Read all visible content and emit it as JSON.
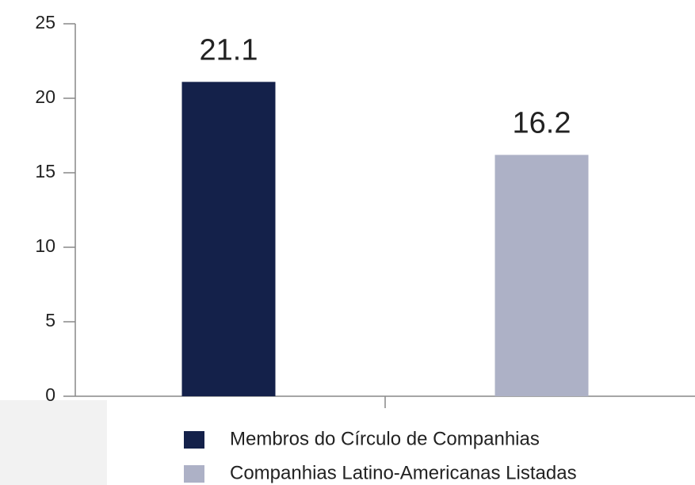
{
  "chart_data": {
    "type": "bar",
    "categories": [
      null
    ],
    "series": [
      {
        "name": "Membros do Círculo de Companhias",
        "color": "#14214a",
        "values": [
          21.1
        ]
      },
      {
        "name": "Companhias Latino-Americanas Listadas",
        "color": "#adb1c6",
        "values": [
          16.2
        ]
      }
    ],
    "ylim": [
      0,
      25
    ],
    "yticks": [
      0,
      5,
      10,
      15,
      20,
      25
    ],
    "grid": false,
    "legend": "bottom"
  }
}
